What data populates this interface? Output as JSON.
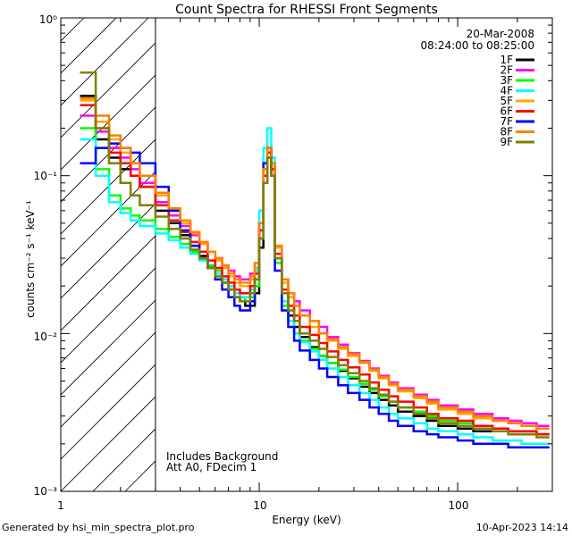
{
  "chart_data": {
    "type": "line",
    "title": "Count Spectra for RHESSI Front Segments",
    "xlabel": "Energy (keV)",
    "ylabel": "counts cm⁻² s⁻¹ keV⁻¹",
    "xscale": "log",
    "yscale": "log",
    "xlim": [
      1,
      300
    ],
    "ylim": [
      0.001,
      1
    ],
    "x_tick_labels": [
      "1",
      "10",
      "100"
    ],
    "y_tick_labels": [
      "10⁻³",
      "10⁻²",
      "10⁻¹",
      "10⁰"
    ],
    "date": "20-Mar-2008",
    "time_range": "08:24:00 to 08:25:00",
    "annotation_line1": "Includes Background",
    "annotation_line2": "Att A0, FDecim 1",
    "hatched_region_max_keV": 3,
    "series": [
      {
        "name": "1F",
        "color": "#000000",
        "values": [
          0.32,
          0.17,
          0.13,
          0.11,
          0.1,
          0.085,
          0.06,
          0.05,
          0.042,
          0.036,
          0.031,
          0.027,
          0.024,
          0.021,
          0.019,
          0.017,
          0.016,
          0.015,
          0.015,
          0.018,
          0.035,
          0.09,
          0.15,
          0.12,
          0.03,
          0.016,
          0.013,
          0.011,
          0.0095,
          0.0082,
          0.0072,
          0.0065,
          0.0058,
          0.0052,
          0.0046,
          0.0042,
          0.0038,
          0.0035,
          0.0032,
          0.003,
          0.0028,
          0.0026,
          0.0025,
          0.0024,
          0.0024,
          0.0023,
          0.0023,
          0.0023
        ]
      },
      {
        "name": "2F",
        "color": "#ff00ff",
        "values": [
          0.24,
          0.19,
          0.15,
          0.13,
          0.11,
          0.09,
          0.068,
          0.056,
          0.048,
          0.042,
          0.037,
          0.033,
          0.03,
          0.027,
          0.025,
          0.023,
          0.022,
          0.022,
          0.024,
          0.028,
          0.045,
          0.1,
          0.13,
          0.1,
          0.035,
          0.022,
          0.018,
          0.016,
          0.014,
          0.012,
          0.011,
          0.0095,
          0.0085,
          0.0075,
          0.0067,
          0.006,
          0.0054,
          0.0049,
          0.0045,
          0.0041,
          0.0038,
          0.0035,
          0.0033,
          0.0031,
          0.0029,
          0.0028,
          0.0027,
          0.0026
        ]
      },
      {
        "name": "3F",
        "color": "#00ff00",
        "values": [
          0.2,
          0.11,
          0.075,
          0.062,
          0.056,
          0.052,
          0.046,
          0.041,
          0.037,
          0.033,
          0.03,
          0.027,
          0.025,
          0.022,
          0.02,
          0.018,
          0.017,
          0.016,
          0.017,
          0.02,
          0.04,
          0.09,
          0.14,
          0.11,
          0.028,
          0.015,
          0.012,
          0.01,
          0.009,
          0.008,
          0.0072,
          0.0065,
          0.0059,
          0.0053,
          0.0048,
          0.0044,
          0.004,
          0.0037,
          0.0034,
          0.0032,
          0.003,
          0.0028,
          0.0027,
          0.0026,
          0.0025,
          0.0024,
          0.0024,
          0.0023
        ]
      },
      {
        "name": "4F",
        "color": "#00ffff",
        "values": [
          0.17,
          0.1,
          0.068,
          0.058,
          0.052,
          0.048,
          0.043,
          0.039,
          0.035,
          0.032,
          0.029,
          0.026,
          0.024,
          0.022,
          0.02,
          0.018,
          0.017,
          0.017,
          0.019,
          0.025,
          0.06,
          0.15,
          0.2,
          0.13,
          0.03,
          0.016,
          0.012,
          0.01,
          0.0088,
          0.0077,
          0.0068,
          0.006,
          0.0053,
          0.0047,
          0.0042,
          0.0038,
          0.0034,
          0.0031,
          0.0029,
          0.0027,
          0.0025,
          0.0024,
          0.0023,
          0.0022,
          0.0021,
          0.0021,
          0.002,
          0.002
        ]
      },
      {
        "name": "5F",
        "color": "#ffa500",
        "values": [
          0.3,
          0.22,
          0.17,
          0.14,
          0.12,
          0.1,
          0.075,
          0.06,
          0.05,
          0.043,
          0.037,
          0.033,
          0.029,
          0.026,
          0.023,
          0.021,
          0.02,
          0.02,
          0.022,
          0.026,
          0.05,
          0.11,
          0.15,
          0.12,
          0.035,
          0.021,
          0.017,
          0.015,
          0.013,
          0.011,
          0.01,
          0.009,
          0.008,
          0.0072,
          0.0065,
          0.0058,
          0.0052,
          0.0047,
          0.0043,
          0.0039,
          0.0036,
          0.0033,
          0.0031,
          0.0029,
          0.0028,
          0.0027,
          0.0026,
          0.0025
        ]
      },
      {
        "name": "6F",
        "color": "#ff0000",
        "values": [
          0.28,
          0.2,
          0.14,
          0.12,
          0.1,
          0.085,
          0.065,
          0.052,
          0.044,
          0.038,
          0.033,
          0.029,
          0.026,
          0.023,
          0.021,
          0.019,
          0.018,
          0.018,
          0.02,
          0.024,
          0.045,
          0.1,
          0.14,
          0.11,
          0.032,
          0.019,
          0.015,
          0.013,
          0.011,
          0.0098,
          0.0087,
          0.0077,
          0.0068,
          0.0061,
          0.0055,
          0.0049,
          0.0044,
          0.004,
          0.0037,
          0.0034,
          0.0031,
          0.0029,
          0.0028,
          0.0026,
          0.0025,
          0.0024,
          0.0024,
          0.0023
        ]
      },
      {
        "name": "7F",
        "color": "#0000ff",
        "values": [
          0.12,
          0.15,
          0.16,
          0.15,
          0.14,
          0.12,
          0.085,
          0.06,
          0.045,
          0.036,
          0.03,
          0.026,
          0.022,
          0.019,
          0.017,
          0.015,
          0.014,
          0.014,
          0.016,
          0.022,
          0.05,
          0.12,
          0.15,
          0.1,
          0.025,
          0.014,
          0.011,
          0.009,
          0.0078,
          0.0068,
          0.006,
          0.0053,
          0.0047,
          0.0042,
          0.0038,
          0.0034,
          0.0031,
          0.0028,
          0.0026,
          0.0024,
          0.0023,
          0.0022,
          0.0021,
          0.002,
          0.002,
          0.0019,
          0.0019,
          0.0019
        ]
      },
      {
        "name": "8F",
        "color": "#ff8000",
        "values": [
          0.31,
          0.24,
          0.18,
          0.15,
          0.12,
          0.1,
          0.078,
          0.062,
          0.052,
          0.044,
          0.038,
          0.033,
          0.03,
          0.027,
          0.024,
          0.022,
          0.021,
          0.021,
          0.023,
          0.028,
          0.05,
          0.11,
          0.15,
          0.12,
          0.036,
          0.022,
          0.018,
          0.015,
          0.013,
          0.012,
          0.01,
          0.0092,
          0.0082,
          0.0074,
          0.0066,
          0.0059,
          0.0053,
          0.0048,
          0.0044,
          0.004,
          0.0037,
          0.0034,
          0.0032,
          0.003,
          0.0028,
          0.0027,
          0.0026,
          0.0025
        ]
      },
      {
        "name": "9F",
        "color": "#808000",
        "values": [
          0.45,
          0.2,
          0.12,
          0.09,
          0.075,
          0.065,
          0.055,
          0.046,
          0.04,
          0.034,
          0.03,
          0.026,
          0.023,
          0.021,
          0.019,
          0.017,
          0.016,
          0.016,
          0.018,
          0.022,
          0.04,
          0.09,
          0.13,
          0.1,
          0.03,
          0.018,
          0.014,
          0.012,
          0.01,
          0.009,
          0.008,
          0.0071,
          0.0063,
          0.0056,
          0.005,
          0.0045,
          0.0041,
          0.0037,
          0.0034,
          0.0031,
          0.0029,
          0.0027,
          0.0026,
          0.0025,
          0.0024,
          0.0023,
          0.0023,
          0.0022
        ]
      }
    ],
    "x_edges_keV": [
      1.25,
      1.5,
      1.75,
      2.0,
      2.25,
      2.5,
      3.0,
      3.5,
      4.0,
      4.5,
      5.0,
      5.5,
      6.0,
      6.5,
      7.0,
      7.5,
      8.0,
      8.5,
      9.0,
      9.5,
      10.0,
      10.5,
      11.0,
      11.5,
      12.0,
      13.0,
      14.0,
      15.0,
      16.0,
      18.0,
      20.0,
      22.0,
      25.0,
      28.0,
      32.0,
      36.0,
      40.0,
      45.0,
      50.0,
      60.0,
      70.0,
      80.0,
      100.0,
      120.0,
      150.0,
      180.0,
      210.0,
      250.0,
      290.0
    ]
  },
  "footer": {
    "generated_by": "Generated by hsi_min_spectra_plot.pro",
    "timestamp": "10-Apr-2023 14:14"
  }
}
